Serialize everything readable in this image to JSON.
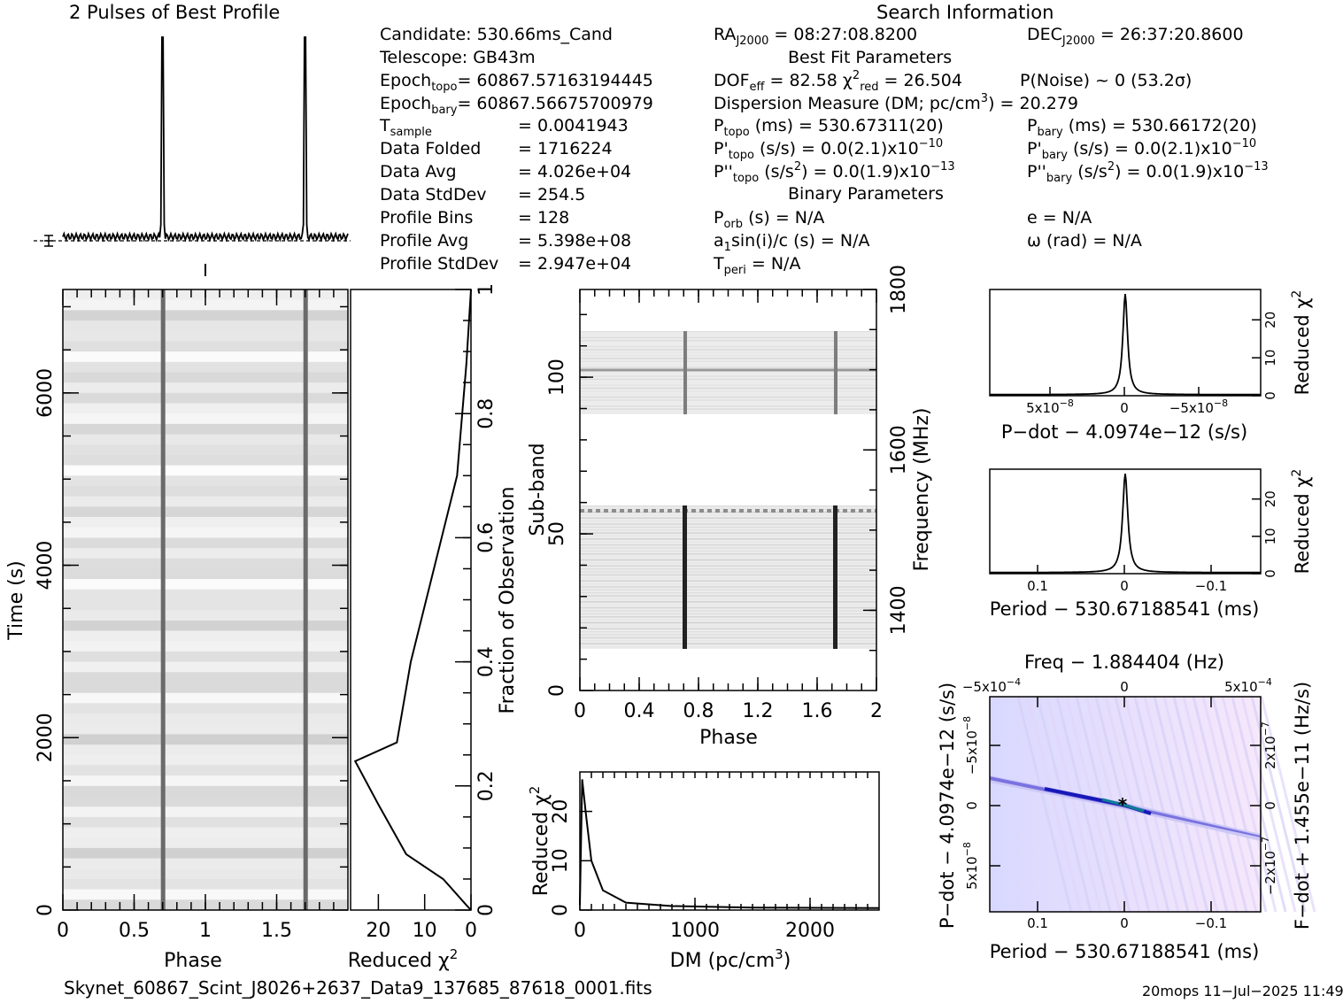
{
  "header": {
    "profile_title": "2 Pulses of Best Profile",
    "search_title": "Search Information",
    "best_fit_title": "Best Fit Parameters",
    "binary_title": "Binary Parameters"
  },
  "info_col1": {
    "candidate": "Candidate:  530.66ms_Cand",
    "telescope": "Telescope:  GB43m",
    "epoch_topo": "Epoch",
    "epoch_topo_sub": "topo",
    "epoch_topo_val": "= 60867.57163194445",
    "epoch_bary": "Epoch",
    "epoch_bary_sub": "bary",
    "epoch_bary_val": "= 60867.56675700979",
    "tsample": "T",
    "tsample_sub": "sample",
    "tsample_val": "=  0.0041943",
    "data_folded": "Data Folded",
    "data_folded_val": "=  1716224",
    "data_avg": "Data Avg",
    "data_avg_val": "=  4.026e+04",
    "data_stddev": "Data StdDev",
    "data_stddev_val": "=  254.5",
    "profile_bins": "Profile Bins",
    "profile_bins_val": "=  128",
    "profile_avg": "Profile Avg",
    "profile_avg_val": "=  5.398e+08",
    "profile_stddev": "Profile StdDev",
    "profile_stddev_val": "=  2.947e+04"
  },
  "info_col2": {
    "ra": "RA",
    "ra_sub": "J2000",
    "ra_val": " = 08:27:08.8200",
    "dof": "DOF",
    "dof_sub": "eff",
    "dof_val": " = 82.58  χ",
    "chi_sup": "2",
    "chi_sub": "red",
    "chi_val": " = 26.504",
    "dm_line": "Dispersion Measure (DM; pc/cm",
    "dm_sup": "3",
    "dm_val": ") = 20.279",
    "ptopo": "P",
    "ptopo_sub": "topo",
    "ptopo_val": " (ms) =  530.67311(20)",
    "pdtopo": "P'",
    "pdtopo_sub": "topo",
    "pdtopo_val": " (s/s) = 0.0(2.1)x10",
    "pdtopo_exp": "−10",
    "pddtopo": "P''",
    "pddtopo_sub": "topo",
    "pddtopo_val": " (s/s",
    "pddtopo_sup2": "2",
    "pddtopo_val2": ") = 0.0(1.9)x10",
    "pddtopo_exp": "−13",
    "porb": "P",
    "porb_sub": "orb",
    "porb_val": " (s) = N/A",
    "a1": "a",
    "a1_sub": "1",
    "a1_val": "sin(i)/c (s) = N/A",
    "tperi": "T",
    "tperi_sub": "peri",
    "tperi_val": " = N/A"
  },
  "info_col3": {
    "dec": "DEC",
    "dec_sub": "J2000",
    "dec_val": " = 26:37:20.8600",
    "pnoise": "P(Noise) ~ 0    (53.2σ)",
    "pbary": "P",
    "pbary_sub": "bary",
    "pbary_val": " (ms) =  530.66172(20)",
    "pdbary": "P'",
    "pdbary_sub": "bary",
    "pdbary_val": " (s/s) = 0.0(2.1)x10",
    "pdbary_exp": "−10",
    "pddbary": "P''",
    "pddbary_sub": "bary",
    "pddbary_val": " (s/s",
    "pddbary_sup2": "2",
    "pddbary_val2": ") = 0.0(1.9)x10",
    "pddbary_exp": "−13",
    "e": "e = N/A",
    "omega": "ω (rad) = N/A"
  },
  "footer": {
    "filename": "Skynet_60867_Scint_J8026+2637_Data9_137685_87618_0001.fits",
    "stamp": "20mops 11−Jul−2025 11:49"
  },
  "chart_data": [
    {
      "id": "profile",
      "type": "line",
      "title": "2 Pulses of Best Profile",
      "x": [
        0,
        0.69,
        0.7,
        0.71,
        1.0,
        1.69,
        1.7,
        1.71,
        2.0
      ],
      "y": [
        0.02,
        0.04,
        1.0,
        0.04,
        0.02,
        0.04,
        1.0,
        0.04,
        0.02
      ]
    },
    {
      "id": "time-phase",
      "type": "heatmap",
      "xlabel": "Phase",
      "ylabel": "Time (s)",
      "xlim": [
        0,
        2
      ],
      "ylim": [
        0,
        7200
      ],
      "xticks": [
        "0",
        "0.5",
        "1",
        "1.5"
      ],
      "yticks": [
        "0",
        "2000",
        "4000",
        "6000"
      ],
      "pulse_phases": [
        0.7,
        1.7
      ]
    },
    {
      "id": "time-chi2",
      "type": "line",
      "xlabel": "Reduced χ",
      "xlabel_sup": "2",
      "ylabel": "Fraction of Observation",
      "xticks": [
        "20",
        "10",
        "0"
      ],
      "yticks": [
        "0",
        "0.2",
        "0.4",
        "0.6",
        "0.8",
        "1"
      ],
      "x": [
        0,
        1,
        6,
        14,
        20,
        25,
        16,
        13,
        3,
        1,
        0
      ],
      "y": [
        0,
        0.008,
        0.05,
        0.09,
        0.17,
        0.24,
        0.27,
        0.4,
        0.7,
        0.88,
        1.0
      ]
    },
    {
      "id": "subband-phase",
      "type": "heatmap",
      "xlabel": "Phase",
      "ylabel": "Sub-band",
      "ylabel_right": "Frequency (MHz)",
      "xticks": [
        "0",
        "0.4",
        "0.8",
        "1.2",
        "1.6",
        "2"
      ],
      "yticks": [
        "0",
        "50",
        "100"
      ],
      "yticks_right": [
        "1400",
        "1600",
        "1800"
      ],
      "pulse_phases": [
        0.7,
        1.7
      ]
    },
    {
      "id": "dm-chi2",
      "type": "line",
      "xlabel": "DM (pc/cm",
      "xlabel_sup": "3",
      "xlabel_end": ")",
      "ylabel": "Reduced χ",
      "ylabel_sup": "2",
      "xticks": [
        "0",
        "1000",
        "2000"
      ],
      "yticks": [
        "0",
        "10",
        "20"
      ],
      "x": [
        0,
        20,
        50,
        100,
        200,
        400,
        800,
        1500,
        2600
      ],
      "y": [
        1,
        26.5,
        20,
        10,
        4,
        1.5,
        0.8,
        0.5,
        0.4
      ]
    },
    {
      "id": "pdot-chi2",
      "type": "line",
      "xlabel": "P−dot − 4.0974e−12 (s/s)",
      "ylabel": "Reduced χ",
      "ylabel_sup": "2",
      "xticks": [
        "5x10",
        "0",
        "−5x10"
      ],
      "xtick_exp": "−8",
      "yticks": [
        "0",
        "10",
        "20"
      ],
      "peak": 26.5
    },
    {
      "id": "period-chi2",
      "type": "line",
      "xlabel": "Period − 530.67188541 (ms)",
      "ylabel": "Reduced χ",
      "ylabel_sup": "2",
      "xticks": [
        "0.1",
        "0",
        "−0.1"
      ],
      "yticks": [
        "0",
        "10",
        "20"
      ],
      "peak": 26.5
    },
    {
      "id": "p-pdot",
      "type": "heatmap",
      "top_label": "Freq − 1.884404 (Hz)",
      "xlabel": "Period − 530.67188541 (ms)",
      "ylabel": "P−dot − 4.0974e−12 (s/s)",
      "ylabel_right": "F−dot + 1.455e−11 (Hz/s)",
      "xticks": [
        "0.1",
        "0",
        "−0.1"
      ],
      "top_ticks": [
        "−5x10",
        "0",
        "5x10"
      ],
      "top_exp": "−4",
      "yticks": [
        "−5x10",
        "0",
        "5x10"
      ],
      "ytick_exp": "−8",
      "rticks": [
        "2x10",
        "0",
        "−2x10"
      ],
      "rtick_exp": "−7"
    }
  ]
}
